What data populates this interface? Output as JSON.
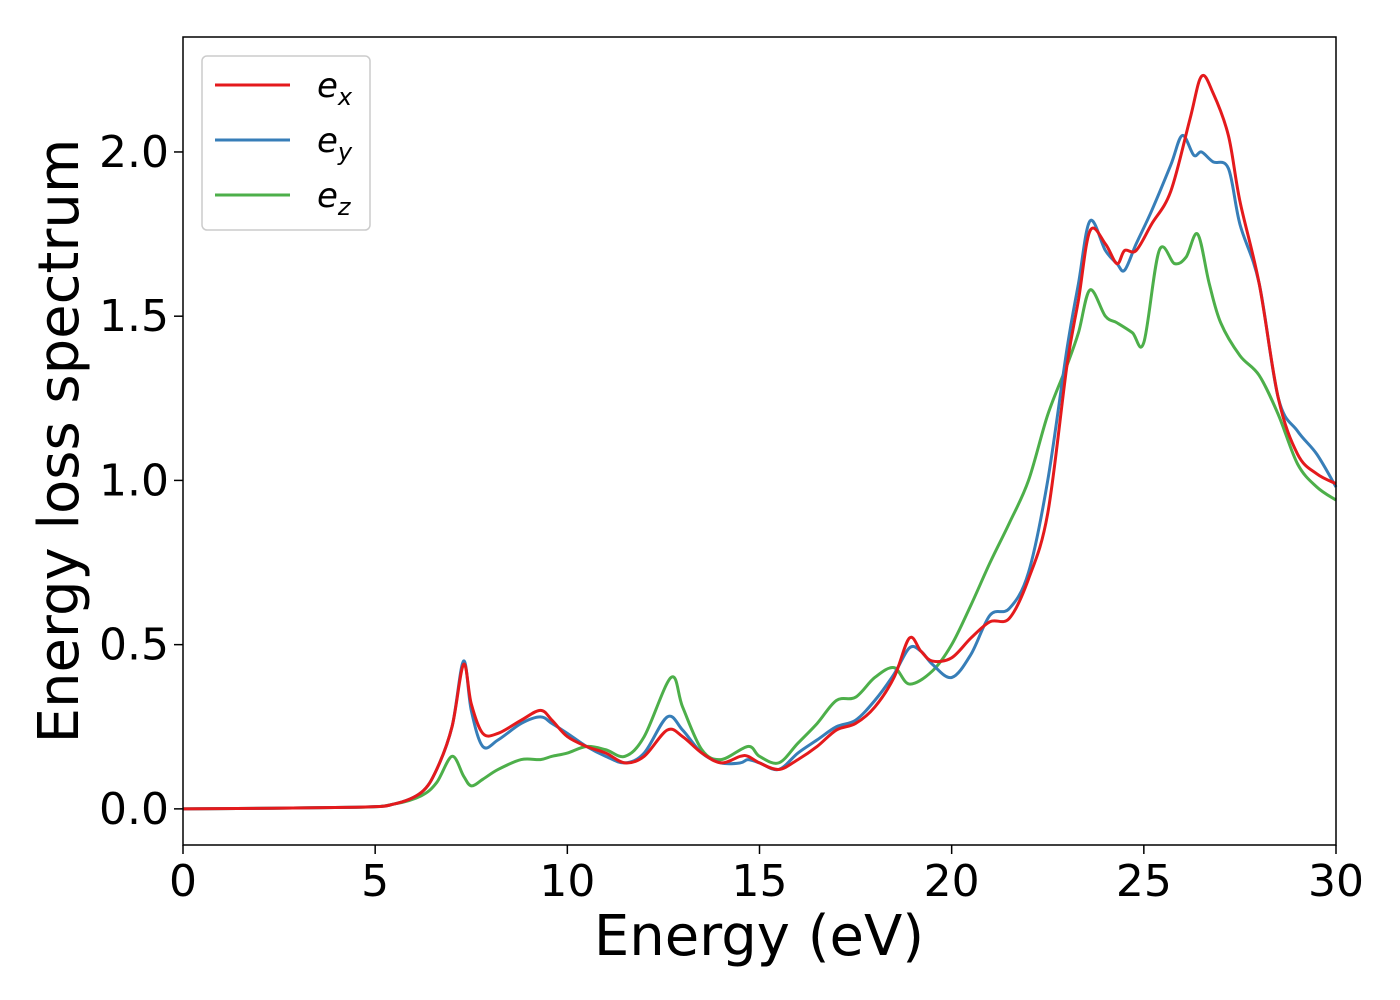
{
  "chart_data": {
    "type": "line",
    "xlabel": "Energy (eV)",
    "ylabel": "Energy loss spectrum",
    "xlim": [
      0,
      30
    ],
    "ylim": [
      -0.11,
      2.35
    ],
    "xticks": [
      0,
      5,
      10,
      15,
      20,
      25,
      30
    ],
    "xtick_labels": [
      "0",
      "5",
      "10",
      "15",
      "20",
      "25",
      "30"
    ],
    "yticks": [
      0.0,
      0.5,
      1.0,
      1.5,
      2.0
    ],
    "ytick_labels": [
      "0.0",
      "0.5",
      "1.0",
      "1.5",
      "2.0"
    ],
    "grid": false,
    "legend_position": "top-left",
    "series": [
      {
        "name": "e",
        "subscript": "x",
        "color": "#e41a1c",
        "x": [
          0,
          4.5,
          5.5,
          6.2,
          6.6,
          7.0,
          7.3,
          7.5,
          7.8,
          8.2,
          8.8,
          9.3,
          9.6,
          10.0,
          10.5,
          11.0,
          11.5,
          12.0,
          12.6,
          13.0,
          13.5,
          14.0,
          14.5,
          14.7,
          15.0,
          15.5,
          16.0,
          16.5,
          17.0,
          17.5,
          18.0,
          18.5,
          18.9,
          19.2,
          19.5,
          20.0,
          20.5,
          21.0,
          21.5,
          22.0,
          22.5,
          23.0,
          23.3,
          23.6,
          24.0,
          24.3,
          24.5,
          24.8,
          25.2,
          25.7,
          26.2,
          26.5,
          26.8,
          27.2,
          27.5,
          28.0,
          28.5,
          29.0,
          29.5,
          30.0
        ],
        "y": [
          0.0,
          0.005,
          0.015,
          0.05,
          0.12,
          0.25,
          0.44,
          0.32,
          0.23,
          0.23,
          0.27,
          0.3,
          0.27,
          0.22,
          0.19,
          0.17,
          0.14,
          0.16,
          0.24,
          0.22,
          0.17,
          0.14,
          0.16,
          0.16,
          0.14,
          0.12,
          0.15,
          0.19,
          0.24,
          0.26,
          0.31,
          0.4,
          0.52,
          0.48,
          0.45,
          0.46,
          0.52,
          0.57,
          0.58,
          0.7,
          0.9,
          1.35,
          1.55,
          1.76,
          1.72,
          1.66,
          1.7,
          1.7,
          1.78,
          1.88,
          2.1,
          2.23,
          2.18,
          2.05,
          1.85,
          1.6,
          1.25,
          1.08,
          1.02,
          0.99
        ]
      },
      {
        "name": "e",
        "subscript": "y",
        "color": "#377eb8",
        "x": [
          0,
          4.5,
          5.5,
          6.2,
          6.6,
          7.0,
          7.3,
          7.5,
          7.8,
          8.2,
          8.8,
          9.3,
          9.6,
          10.0,
          10.5,
          11.0,
          11.5,
          12.0,
          12.6,
          13.0,
          13.5,
          14.0,
          14.5,
          14.7,
          15.0,
          15.5,
          16.0,
          16.5,
          17.0,
          17.5,
          18.0,
          18.5,
          18.9,
          19.2,
          19.5,
          20.0,
          20.5,
          21.0,
          21.5,
          22.0,
          22.5,
          23.0,
          23.3,
          23.6,
          24.0,
          24.3,
          24.5,
          24.8,
          25.2,
          25.7,
          26.0,
          26.3,
          26.5,
          26.8,
          27.2,
          27.5,
          28.0,
          28.5,
          29.0,
          29.5,
          30.0
        ],
        "y": [
          0.0,
          0.005,
          0.015,
          0.05,
          0.12,
          0.25,
          0.45,
          0.3,
          0.19,
          0.21,
          0.26,
          0.28,
          0.26,
          0.23,
          0.19,
          0.16,
          0.14,
          0.17,
          0.28,
          0.24,
          0.17,
          0.14,
          0.14,
          0.15,
          0.14,
          0.12,
          0.17,
          0.21,
          0.25,
          0.27,
          0.33,
          0.41,
          0.49,
          0.48,
          0.44,
          0.4,
          0.47,
          0.59,
          0.61,
          0.72,
          1.0,
          1.4,
          1.6,
          1.79,
          1.7,
          1.66,
          1.64,
          1.72,
          1.82,
          1.96,
          2.05,
          1.99,
          2.0,
          1.97,
          1.95,
          1.78,
          1.6,
          1.25,
          1.15,
          1.08,
          0.98
        ]
      },
      {
        "name": "e",
        "subscript": "z",
        "color": "#4daf4a",
        "x": [
          0,
          4.5,
          5.5,
          6.2,
          6.6,
          7.0,
          7.3,
          7.5,
          7.8,
          8.2,
          8.8,
          9.3,
          9.6,
          10.0,
          10.5,
          11.0,
          11.5,
          12.0,
          12.7,
          13.0,
          13.5,
          14.0,
          14.7,
          15.0,
          15.5,
          16.0,
          16.5,
          17.0,
          17.5,
          18.0,
          18.5,
          18.9,
          19.5,
          20.0,
          20.5,
          21.0,
          21.5,
          22.0,
          22.5,
          23.0,
          23.3,
          23.6,
          24.0,
          24.3,
          24.7,
          25.0,
          25.4,
          25.8,
          26.1,
          26.4,
          26.7,
          27.0,
          27.5,
          28.0,
          28.5,
          29.0,
          29.5,
          30.0
        ],
        "y": [
          0.0,
          0.005,
          0.015,
          0.04,
          0.08,
          0.16,
          0.1,
          0.07,
          0.09,
          0.12,
          0.15,
          0.15,
          0.16,
          0.17,
          0.19,
          0.18,
          0.16,
          0.22,
          0.4,
          0.31,
          0.18,
          0.15,
          0.19,
          0.16,
          0.14,
          0.2,
          0.26,
          0.33,
          0.34,
          0.4,
          0.43,
          0.38,
          0.42,
          0.5,
          0.62,
          0.75,
          0.87,
          1.0,
          1.2,
          1.35,
          1.45,
          1.58,
          1.5,
          1.48,
          1.45,
          1.42,
          1.7,
          1.66,
          1.68,
          1.75,
          1.6,
          1.48,
          1.38,
          1.32,
          1.2,
          1.05,
          0.98,
          0.94
        ]
      }
    ]
  }
}
